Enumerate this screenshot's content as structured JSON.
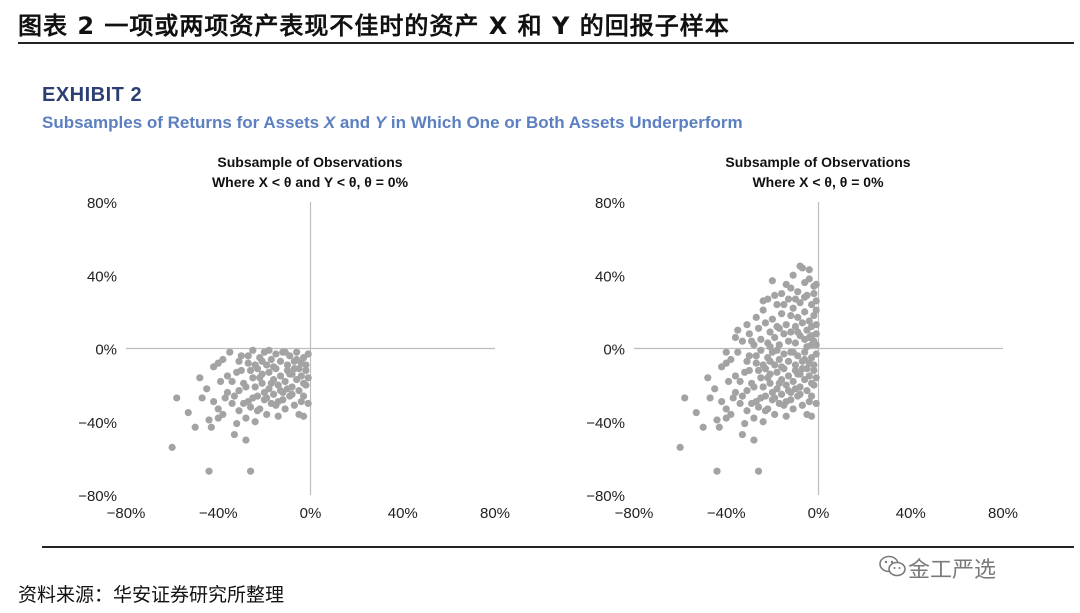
{
  "figure_title": "图表 2 一项或两项资产表现不佳时的资产 X 和 Y 的回报子样本",
  "exhibit_label": "EXHIBIT 2",
  "subtitle": {
    "part1": "Subsamples of Returns for Assets ",
    "x": "X",
    "part2": " and ",
    "y": "Y",
    "part3": " in Which One or Both Assets Underperform"
  },
  "source": "资料来源：华安证券研究所整理",
  "watermark": "金工严选",
  "watermark_icon": "wechat-icon",
  "point_color": "#a3a3a3",
  "chart_data": [
    {
      "type": "scatter",
      "title_line1": "Subsample of Observations",
      "title_line2": "Where X < θ and Y < θ, θ = 0%",
      "xlim": [
        -80,
        80
      ],
      "ylim": [
        -80,
        80
      ],
      "xticks": [
        "−80%",
        "−40%",
        "0%",
        "40%",
        "80%"
      ],
      "yticks": [
        "80%",
        "40%",
        "0%",
        "−40%",
        "−80%"
      ],
      "points": [
        [
          -58,
          -27
        ],
        [
          -60,
          -54
        ],
        [
          -53,
          -35
        ],
        [
          -50,
          -43
        ],
        [
          -47,
          -27
        ],
        [
          -45,
          -22
        ],
        [
          -44,
          -39
        ],
        [
          -44,
          -67
        ],
        [
          -43,
          -43
        ],
        [
          -40,
          -38
        ],
        [
          -42,
          -10
        ],
        [
          -40,
          -33
        ],
        [
          -39,
          -18
        ],
        [
          -38,
          -6
        ],
        [
          -37,
          -27
        ],
        [
          -36,
          -15
        ],
        [
          -35,
          -2
        ],
        [
          -34,
          -30
        ],
        [
          -33,
          -47
        ],
        [
          -32,
          -41
        ],
        [
          -31,
          -34
        ],
        [
          -31,
          -23
        ],
        [
          -30,
          -12
        ],
        [
          -30,
          -4
        ],
        [
          -29,
          -19
        ],
        [
          -28,
          -38
        ],
        [
          -28,
          -50
        ],
        [
          -27,
          -29
        ],
        [
          -27,
          -8
        ],
        [
          -26,
          -67
        ],
        [
          -26,
          -32
        ],
        [
          -25,
          -16
        ],
        [
          -25,
          -1
        ],
        [
          -24,
          -21
        ],
        [
          -24,
          -40
        ],
        [
          -23,
          -11
        ],
        [
          -23,
          -26
        ],
        [
          -22,
          -5
        ],
        [
          -22,
          -33
        ],
        [
          -21,
          -14
        ],
        [
          -21,
          -19
        ],
        [
          -20,
          -28
        ],
        [
          -20,
          -2
        ],
        [
          -19,
          -9
        ],
        [
          -19,
          -36
        ],
        [
          -18,
          -22
        ],
        [
          -18,
          -13
        ],
        [
          -17,
          -6
        ],
        [
          -17,
          -30
        ],
        [
          -16,
          -17
        ],
        [
          -16,
          -25
        ],
        [
          -15,
          -3
        ],
        [
          -15,
          -11
        ],
        [
          -14,
          -20
        ],
        [
          -14,
          -29
        ],
        [
          -13,
          -7
        ],
        [
          -13,
          -15
        ],
        [
          -12,
          -24
        ],
        [
          -12,
          -2
        ],
        [
          -11,
          -33
        ],
        [
          -11,
          -18
        ],
        [
          -10,
          -9
        ],
        [
          -10,
          -12
        ],
        [
          -9,
          -26
        ],
        [
          -9,
          -4
        ],
        [
          -8,
          -21
        ],
        [
          -8,
          -14
        ],
        [
          -7,
          -31
        ],
        [
          -7,
          -7
        ],
        [
          -6,
          -17
        ],
        [
          -6,
          -2
        ],
        [
          -5,
          -23
        ],
        [
          -5,
          -11
        ],
        [
          -4,
          -15
        ],
        [
          -4,
          -29
        ],
        [
          -3,
          -5
        ],
        [
          -3,
          -19
        ],
        [
          -2,
          -9
        ],
        [
          -2,
          -12
        ],
        [
          -1,
          -3
        ],
        [
          -1,
          -16
        ],
        [
          -3,
          -37
        ],
        [
          -1,
          -30
        ],
        [
          -5,
          -36
        ],
        [
          -8,
          -25
        ],
        [
          -12,
          -28
        ],
        [
          -16,
          -10
        ],
        [
          -20,
          -24
        ],
        [
          -24,
          -9
        ],
        [
          -28,
          -21
        ],
        [
          -32,
          -13
        ],
        [
          -36,
          -24
        ],
        [
          -40,
          -8
        ],
        [
          -29,
          -30
        ],
        [
          -15,
          -31
        ],
        [
          -10,
          -22
        ],
        [
          -6,
          -6
        ],
        [
          -18,
          -1
        ],
        [
          -14,
          -37
        ],
        [
          -22,
          -16
        ],
        [
          -26,
          -12
        ],
        [
          -34,
          -18
        ],
        [
          -38,
          -36
        ],
        [
          -42,
          -29
        ],
        [
          -48,
          -16
        ],
        [
          -11,
          -2
        ],
        [
          -7,
          -11
        ],
        [
          -3,
          -26
        ],
        [
          -19,
          -27
        ],
        [
          -23,
          -34
        ],
        [
          -27,
          -4
        ],
        [
          -31,
          -7
        ],
        [
          -33,
          -26
        ],
        [
          -17,
          -19
        ],
        [
          -9,
          -14
        ],
        [
          -13,
          -23
        ],
        [
          -21,
          -7
        ],
        [
          -25,
          -27
        ],
        [
          -4,
          -8
        ],
        [
          -2,
          -20
        ]
      ]
    },
    {
      "type": "scatter",
      "title_line1": "Subsample of Observations",
      "title_line2": "Where X < θ, θ = 0%",
      "xlim": [
        -80,
        80
      ],
      "ylim": [
        -80,
        80
      ],
      "xticks": [
        "−80%",
        "−40%",
        "0%",
        "40%",
        "80%"
      ],
      "yticks": [
        "80%",
        "40%",
        "0%",
        "−40%",
        "−80%"
      ],
      "points": [
        [
          -58,
          -27
        ],
        [
          -60,
          -54
        ],
        [
          -53,
          -35
        ],
        [
          -50,
          -43
        ],
        [
          -47,
          -27
        ],
        [
          -45,
          -22
        ],
        [
          -44,
          -39
        ],
        [
          -44,
          -67
        ],
        [
          -43,
          -43
        ],
        [
          -40,
          -38
        ],
        [
          -42,
          -10
        ],
        [
          -40,
          -33
        ],
        [
          -39,
          -18
        ],
        [
          -38,
          -6
        ],
        [
          -37,
          -27
        ],
        [
          -36,
          -15
        ],
        [
          -35,
          -2
        ],
        [
          -34,
          -30
        ],
        [
          -33,
          -47
        ],
        [
          -32,
          -41
        ],
        [
          -31,
          -34
        ],
        [
          -31,
          -23
        ],
        [
          -30,
          -12
        ],
        [
          -30,
          -4
        ],
        [
          -29,
          -19
        ],
        [
          -28,
          -38
        ],
        [
          -28,
          -50
        ],
        [
          -27,
          -29
        ],
        [
          -27,
          -8
        ],
        [
          -26,
          -67
        ],
        [
          -26,
          -32
        ],
        [
          -25,
          -16
        ],
        [
          -25,
          -1
        ],
        [
          -24,
          -21
        ],
        [
          -24,
          -40
        ],
        [
          -23,
          -11
        ],
        [
          -23,
          -26
        ],
        [
          -22,
          -5
        ],
        [
          -22,
          -33
        ],
        [
          -21,
          -14
        ],
        [
          -21,
          -19
        ],
        [
          -20,
          -28
        ],
        [
          -20,
          -2
        ],
        [
          -19,
          -9
        ],
        [
          -19,
          -36
        ],
        [
          -18,
          -22
        ],
        [
          -18,
          -13
        ],
        [
          -17,
          -6
        ],
        [
          -17,
          -30
        ],
        [
          -16,
          -17
        ],
        [
          -16,
          -25
        ],
        [
          -15,
          -3
        ],
        [
          -15,
          -11
        ],
        [
          -14,
          -20
        ],
        [
          -14,
          -29
        ],
        [
          -13,
          -7
        ],
        [
          -13,
          -15
        ],
        [
          -12,
          -24
        ],
        [
          -12,
          -2
        ],
        [
          -11,
          -33
        ],
        [
          -11,
          -18
        ],
        [
          -10,
          -9
        ],
        [
          -10,
          -12
        ],
        [
          -9,
          -26
        ],
        [
          -9,
          -4
        ],
        [
          -8,
          -21
        ],
        [
          -8,
          -14
        ],
        [
          -7,
          -31
        ],
        [
          -7,
          -7
        ],
        [
          -6,
          -17
        ],
        [
          -6,
          -2
        ],
        [
          -5,
          -23
        ],
        [
          -5,
          -11
        ],
        [
          -4,
          -15
        ],
        [
          -4,
          -29
        ],
        [
          -3,
          -5
        ],
        [
          -3,
          -19
        ],
        [
          -2,
          -9
        ],
        [
          -2,
          -12
        ],
        [
          -1,
          -3
        ],
        [
          -1,
          -16
        ],
        [
          -3,
          -37
        ],
        [
          -1,
          -30
        ],
        [
          -5,
          -36
        ],
        [
          -8,
          -25
        ],
        [
          -12,
          -28
        ],
        [
          -16,
          -10
        ],
        [
          -20,
          -24
        ],
        [
          -24,
          -9
        ],
        [
          -28,
          -21
        ],
        [
          -32,
          -13
        ],
        [
          -36,
          -24
        ],
        [
          -40,
          -8
        ],
        [
          -29,
          -30
        ],
        [
          -15,
          -31
        ],
        [
          -10,
          -22
        ],
        [
          -6,
          -6
        ],
        [
          -18,
          -1
        ],
        [
          -14,
          -37
        ],
        [
          -22,
          -16
        ],
        [
          -26,
          -12
        ],
        [
          -34,
          -18
        ],
        [
          -38,
          -36
        ],
        [
          -42,
          -29
        ],
        [
          -48,
          -16
        ],
        [
          -11,
          -2
        ],
        [
          -7,
          -11
        ],
        [
          -3,
          -26
        ],
        [
          -19,
          -27
        ],
        [
          -23,
          -34
        ],
        [
          -27,
          -4
        ],
        [
          -31,
          -7
        ],
        [
          -33,
          -26
        ],
        [
          -17,
          -19
        ],
        [
          -9,
          -14
        ],
        [
          -13,
          -23
        ],
        [
          -21,
          -7
        ],
        [
          -25,
          -27
        ],
        [
          -4,
          -8
        ],
        [
          -2,
          -20
        ],
        [
          -40,
          -2
        ],
        [
          -36,
          6
        ],
        [
          -35,
          10
        ],
        [
          -33,
          4
        ],
        [
          -31,
          13
        ],
        [
          -30,
          8
        ],
        [
          -28,
          2
        ],
        [
          -27,
          17
        ],
        [
          -26,
          11
        ],
        [
          -25,
          5
        ],
        [
          -24,
          21
        ],
        [
          -23,
          14
        ],
        [
          -22,
          3
        ],
        [
          -22,
          27
        ],
        [
          -21,
          9
        ],
        [
          -20,
          16
        ],
        [
          -19,
          6
        ],
        [
          -18,
          24
        ],
        [
          -18,
          12
        ],
        [
          -17,
          2
        ],
        [
          -16,
          30
        ],
        [
          -16,
          19
        ],
        [
          -15,
          8
        ],
        [
          -14,
          35
        ],
        [
          -14,
          13
        ],
        [
          -13,
          4
        ],
        [
          -13,
          27
        ],
        [
          -12,
          18
        ],
        [
          -12,
          9
        ],
        [
          -11,
          40
        ],
        [
          -11,
          22
        ],
        [
          -10,
          12
        ],
        [
          -10,
          3
        ],
        [
          -9,
          31
        ],
        [
          -9,
          17
        ],
        [
          -8,
          7
        ],
        [
          -8,
          25
        ],
        [
          -7,
          44
        ],
        [
          -7,
          14
        ],
        [
          -6,
          36
        ],
        [
          -6,
          5
        ],
        [
          -6,
          20
        ],
        [
          -5,
          10
        ],
        [
          -5,
          29
        ],
        [
          -4,
          15
        ],
        [
          -4,
          38
        ],
        [
          -3,
          7
        ],
        [
          -3,
          24
        ],
        [
          -3,
          12
        ],
        [
          -2,
          30
        ],
        [
          -2,
          18
        ],
        [
          -2,
          4
        ],
        [
          -1,
          13
        ],
        [
          -1,
          26
        ],
        [
          -1,
          8
        ],
        [
          -1,
          21
        ],
        [
          -2,
          34
        ],
        [
          -3,
          2
        ],
        [
          -4,
          43
        ],
        [
          -5,
          1
        ],
        [
          -8,
          45
        ],
        [
          -10,
          27
        ],
        [
          -12,
          33
        ],
        [
          -15,
          24
        ],
        [
          -19,
          29
        ],
        [
          -21,
          1
        ],
        [
          -24,
          26
        ],
        [
          -29,
          4
        ],
        [
          -20,
          37
        ],
        [
          -17,
          11
        ],
        [
          -9,
          9
        ],
        [
          -6,
          28
        ],
        [
          -4,
          6
        ],
        [
          -1,
          35
        ],
        [
          -1,
          2
        ]
      ]
    }
  ]
}
